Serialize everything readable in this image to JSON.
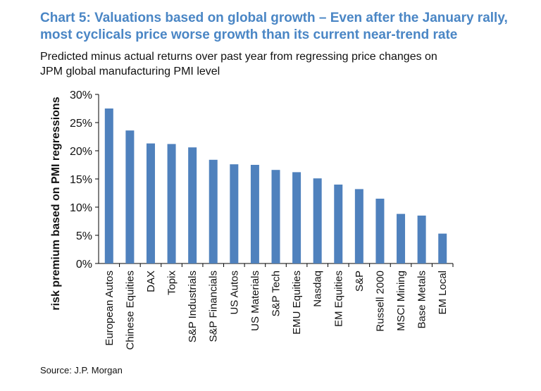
{
  "title_line1": "Chart 5: Valuations based on global growth – Even after the January rally,",
  "title_line2": "most cyclicals price worse growth than its current near-trend rate",
  "subtitle_line1": "Predicted minus actual returns over past year from regressing price changes on",
  "subtitle_line2": "JPM global manufacturing PMI level",
  "source": "Source: J.P. Morgan",
  "chart_data": {
    "type": "bar",
    "title": "Chart 5: Valuations based on global growth – Even after the January rally, most cyclicals price worse growth than its current near-trend rate",
    "subtitle": "Predicted minus actual returns over past year from regressing price changes on JPM global manufacturing PMI level",
    "xlabel": "",
    "ylabel": "risk premium based on PMI regressions",
    "ylim": [
      0,
      30
    ],
    "yticks": [
      0,
      5,
      10,
      15,
      20,
      25,
      30
    ],
    "ytick_labels": [
      "0%",
      "5%",
      "10%",
      "15%",
      "20%",
      "25%",
      "30%"
    ],
    "grid": false,
    "legend": "none",
    "bar_color": "#4f81bd",
    "categories": [
      "European Autos",
      "Chinese Equities",
      "DAX",
      "Topix",
      "S&P Industrials",
      "S&P Financials",
      "US Autos",
      "US Materials",
      "S&P Tech",
      "EMU Equities",
      "Nasdaq",
      "EM Equities",
      "S&P",
      "Russell 2000",
      "MSCI Mining",
      "Base Metals",
      "EM Local"
    ],
    "values": [
      27.5,
      23.6,
      21.3,
      21.2,
      20.6,
      18.4,
      17.6,
      17.5,
      16.6,
      16.2,
      15.1,
      14.0,
      13.2,
      11.5,
      8.8,
      8.5,
      5.3
    ]
  }
}
